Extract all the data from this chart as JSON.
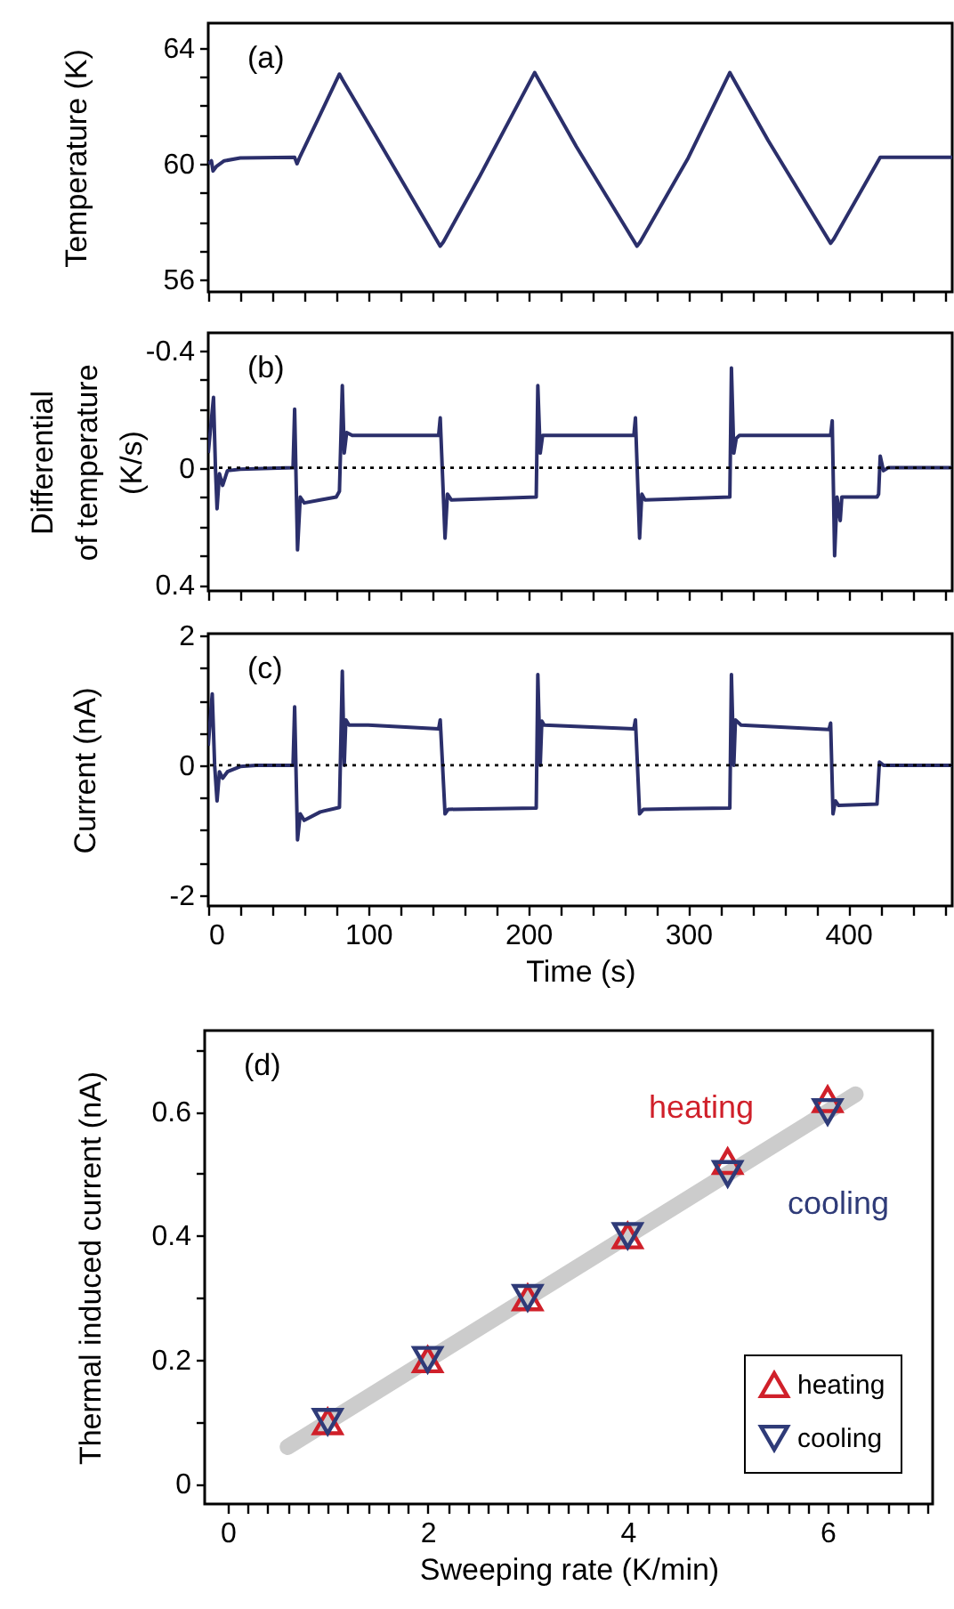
{
  "chart_data": [
    {
      "type": "line",
      "ylabel": "Temperature (K)",
      "annotations": [
        "(a)"
      ],
      "tick_labels": "y",
      "grid": false,
      "xlim": [
        0,
        465
      ],
      "ylim": [
        55.57,
        64.86
      ],
      "xticks": [
        0,
        20,
        40,
        60,
        80,
        100,
        120,
        140,
        160,
        180,
        200,
        220,
        240,
        260,
        280,
        300,
        320,
        340,
        360,
        380,
        400,
        420,
        440,
        460
      ],
      "yticks": [
        56,
        {
          "value": 57,
          "label": null
        },
        {
          "value": 58,
          "label": null
        },
        {
          "value": 59,
          "label": null
        },
        60,
        {
          "value": 61,
          "label": null
        },
        {
          "value": 62,
          "label": null
        },
        {
          "value": 63,
          "label": null
        },
        64
      ],
      "x": [
        0,
        2,
        3,
        5,
        10,
        20,
        54,
        55.5,
        57,
        70,
        82,
        84,
        100,
        145,
        147,
        170,
        204,
        206,
        230,
        268,
        270,
        300,
        326,
        328,
        350,
        389,
        391,
        420,
        465
      ],
      "series": [
        {
          "color": "#2b2f6b",
          "values": [
            60.0,
            60.1,
            59.75,
            59.9,
            60.1,
            60.2,
            60.22,
            60.0,
            60.2,
            61.7,
            63.1,
            62.9,
            61.4,
            57.15,
            57.3,
            59.6,
            63.15,
            62.95,
            60.6,
            57.15,
            57.3,
            60.2,
            63.15,
            62.95,
            60.8,
            57.25,
            57.4,
            60.22,
            60.22
          ]
        }
      ]
    },
    {
      "type": "line",
      "ylabel": "Differential\nof temperature\n(K/s)",
      "annotations": [
        "(b)"
      ],
      "tick_labels": "y",
      "grid": false,
      "xlim": [
        0,
        465
      ],
      "ylim": [
        0.42,
        -0.46
      ],
      "xticks": [
        0,
        20,
        40,
        60,
        80,
        100,
        120,
        140,
        160,
        180,
        200,
        220,
        240,
        260,
        280,
        300,
        320,
        340,
        360,
        380,
        400,
        420,
        440,
        460
      ],
      "yticks": [
        {
          "value": -0.4,
          "label": "-0.4"
        },
        {
          "value": -0.3,
          "label": null
        },
        {
          "value": -0.2,
          "label": null
        },
        {
          "value": -0.1,
          "label": null
        },
        {
          "value": 0,
          "label": "0"
        },
        {
          "value": 0.1,
          "label": null
        },
        {
          "value": 0.2,
          "label": null
        },
        {
          "value": 0.3,
          "label": null
        },
        {
          "value": 0.4,
          "label": "0.4"
        }
      ],
      "ref_lines": [
        {
          "axis": "y",
          "value": 0,
          "color": "#000000",
          "line_style": "dotted"
        }
      ],
      "x": [
        0,
        3.3,
        4.5,
        5.5,
        7,
        9,
        12,
        20,
        53,
        54,
        55.8,
        57.5,
        60,
        70,
        80,
        82,
        83.8,
        85,
        86.5,
        90,
        144,
        145,
        148,
        149.5,
        152,
        205,
        206,
        207.5,
        209,
        266,
        267,
        269.6,
        271,
        273,
        326,
        327,
        328.5,
        330,
        332,
        389,
        390,
        391.5,
        393,
        395,
        396,
        418,
        419,
        420,
        422,
        425,
        465
      ],
      "series": [
        {
          "color": "#2b2f6b",
          "values": [
            -0.05,
            -0.24,
            0.0,
            0.14,
            0.02,
            0.06,
            0.01,
            0.005,
            0.0,
            -0.2,
            0.28,
            0.1,
            0.12,
            0.11,
            0.1,
            0.08,
            -0.28,
            -0.05,
            -0.12,
            -0.11,
            -0.11,
            -0.17,
            0.24,
            0.09,
            0.11,
            0.1,
            -0.28,
            -0.05,
            -0.11,
            -0.11,
            -0.17,
            0.24,
            0.09,
            0.11,
            0.1,
            -0.34,
            -0.05,
            -0.1,
            -0.11,
            -0.11,
            -0.16,
            0.3,
            0.1,
            0.18,
            0.1,
            0.1,
            0.09,
            -0.04,
            0.01,
            0.0,
            0.0
          ]
        }
      ]
    },
    {
      "type": "line",
      "ylabel": "Current (nA)",
      "xlabel": "Time (s)",
      "annotations": [
        "(c)"
      ],
      "grid": false,
      "xlim": [
        0,
        465
      ],
      "ylim": [
        -2.17,
        2.03
      ],
      "xticks": [
        0,
        {
          "value": 20,
          "label": null
        },
        {
          "value": 40,
          "label": null
        },
        {
          "value": 60,
          "label": null
        },
        {
          "value": 80,
          "label": null
        },
        100,
        {
          "value": 120,
          "label": null
        },
        {
          "value": 140,
          "label": null
        },
        {
          "value": 160,
          "label": null
        },
        {
          "value": 180,
          "label": null
        },
        200,
        {
          "value": 220,
          "label": null
        },
        {
          "value": 240,
          "label": null
        },
        {
          "value": 260,
          "label": null
        },
        {
          "value": 280,
          "label": null
        },
        300,
        {
          "value": 320,
          "label": null
        },
        {
          "value": 340,
          "label": null
        },
        {
          "value": 360,
          "label": null
        },
        {
          "value": 380,
          "label": null
        },
        400,
        {
          "value": 420,
          "label": null
        },
        {
          "value": 440,
          "label": null
        },
        {
          "value": 460,
          "label": null
        }
      ],
      "yticks": [
        {
          "value": -2,
          "label": "-2"
        },
        {
          "value": -1.5,
          "label": null
        },
        {
          "value": -1,
          "label": null
        },
        {
          "value": -0.5,
          "label": null
        },
        {
          "value": 0,
          "label": "0"
        },
        {
          "value": 0.5,
          "label": null
        },
        {
          "value": 1,
          "label": null
        },
        {
          "value": 1.5,
          "label": null
        },
        {
          "value": 2,
          "label": "2"
        }
      ],
      "ref_lines": [
        {
          "axis": "y",
          "value": 0,
          "color": "#000000",
          "line_style": "dotted"
        }
      ],
      "x": [
        0,
        2.5,
        4,
        5.5,
        7,
        9,
        12,
        20,
        30,
        53,
        54,
        55.8,
        57.5,
        60,
        70,
        82,
        83.8,
        85,
        86,
        88,
        100,
        144,
        145,
        148,
        150,
        205,
        206,
        207.5,
        208.5,
        210,
        266,
        267,
        269.6,
        272,
        326,
        327,
        328.5,
        329.5,
        333,
        388,
        389,
        390.5,
        392,
        394,
        418,
        419.5,
        422,
        465
      ],
      "series": [
        {
          "color": "#2b2f6b",
          "values": [
            0.3,
            1.1,
            0.0,
            -0.55,
            -0.1,
            -0.2,
            -0.1,
            -0.02,
            0.0,
            0.0,
            0.9,
            -1.15,
            -0.75,
            -0.85,
            -0.72,
            -0.65,
            1.45,
            0.0,
            0.7,
            0.62,
            0.62,
            0.56,
            0.7,
            -0.75,
            -0.68,
            -0.66,
            1.4,
            0.0,
            0.68,
            0.62,
            0.56,
            0.7,
            -0.75,
            -0.68,
            -0.66,
            1.4,
            0.0,
            0.7,
            0.62,
            0.55,
            0.65,
            -0.75,
            -0.55,
            -0.62,
            -0.6,
            0.05,
            0.0,
            0.0
          ]
        }
      ]
    },
    {
      "type": "scatter",
      "ylabel": "Thermal induced current (nA)",
      "xlabel": "Sweeping rate (K/min)",
      "annotations": [
        "(d)",
        "heating",
        "cooling"
      ],
      "grid": false,
      "legend": "bottom right",
      "xlim": [
        -0.23,
        7.05
      ],
      "ylim": [
        -0.033,
        0.731
      ],
      "xticks": [
        {
          "value": 0,
          "label": "0"
        },
        {
          "value": 0.2,
          "label": null
        },
        {
          "value": 0.4,
          "label": null
        },
        {
          "value": 0.6,
          "label": null
        },
        {
          "value": 0.8,
          "label": null
        },
        {
          "value": 1,
          "label": null
        },
        {
          "value": 1.2,
          "label": null
        },
        {
          "value": 1.4,
          "label": null
        },
        {
          "value": 1.6,
          "label": null
        },
        {
          "value": 1.8,
          "label": null
        },
        {
          "value": 2,
          "label": "2"
        },
        {
          "value": 2.2,
          "label": null
        },
        {
          "value": 2.4,
          "label": null
        },
        {
          "value": 2.6,
          "label": null
        },
        {
          "value": 2.8,
          "label": null
        },
        {
          "value": 3,
          "label": null
        },
        {
          "value": 3.2,
          "label": null
        },
        {
          "value": 3.4,
          "label": null
        },
        {
          "value": 3.6,
          "label": null
        },
        {
          "value": 3.8,
          "label": null
        },
        {
          "value": 4,
          "label": "4"
        },
        {
          "value": 4.2,
          "label": null
        },
        {
          "value": 4.4,
          "label": null
        },
        {
          "value": 4.6,
          "label": null
        },
        {
          "value": 4.8,
          "label": null
        },
        {
          "value": 5,
          "label": null
        },
        {
          "value": 5.2,
          "label": null
        },
        {
          "value": 5.4,
          "label": null
        },
        {
          "value": 5.6,
          "label": null
        },
        {
          "value": 5.8,
          "label": null
        },
        {
          "value": 6,
          "label": "6"
        },
        {
          "value": 6.2,
          "label": null
        },
        {
          "value": 6.4,
          "label": null
        },
        {
          "value": 6.6,
          "label": null
        },
        {
          "value": 6.8,
          "label": null
        },
        {
          "value": 7,
          "label": null
        }
      ],
      "yticks": [
        {
          "value": 0,
          "label": "0"
        },
        {
          "value": 0.1,
          "label": null
        },
        {
          "value": 0.2,
          "label": "0.2"
        },
        {
          "value": 0.3,
          "label": null
        },
        {
          "value": 0.4,
          "label": "0.4"
        },
        {
          "value": 0.5,
          "label": null
        },
        {
          "value": 0.6,
          "label": "0.6"
        },
        {
          "value": 0.7,
          "label": null
        }
      ],
      "x": [
        1,
        2,
        3,
        4,
        5,
        6
      ],
      "series": [
        {
          "name": "heating",
          "color": "#d0202a",
          "marker": "triangle",
          "values": [
            0.1,
            0.2,
            0.3,
            0.4,
            0.52,
            0.62
          ]
        },
        {
          "name": "cooling",
          "color": "#2f3b78",
          "marker": "triangle-down",
          "values": [
            0.1,
            0.2,
            0.3,
            0.4,
            0.5,
            0.6
          ]
        },
        {
          "type": "line",
          "color": "#cccccc",
          "x": [
            0.6,
            6.28
          ],
          "values": [
            0.059,
            0.628
          ]
        }
      ]
    }
  ]
}
